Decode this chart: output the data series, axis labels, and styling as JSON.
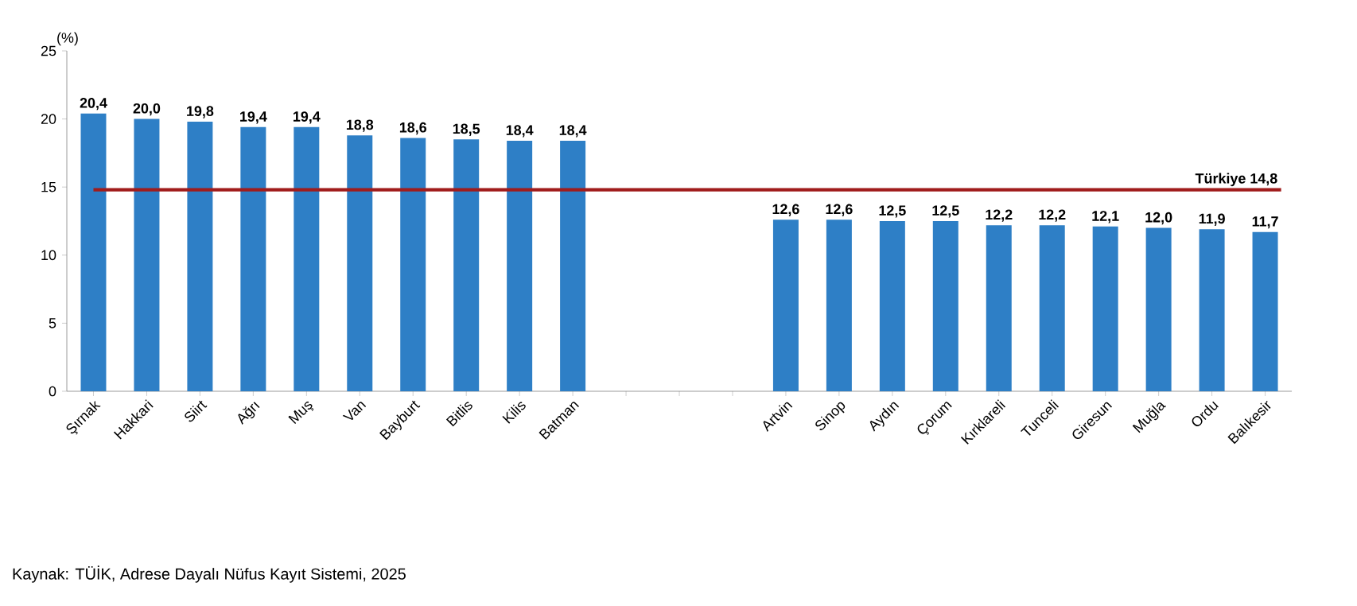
{
  "chart_data": {
    "type": "bar",
    "ylabel": "(%)",
    "categories": [
      "Şırnak",
      "Hakkari",
      "Siirt",
      "Ağrı",
      "Muş",
      "Van",
      "Bayburt",
      "Bitlis",
      "Kilis",
      "Batman",
      null,
      null,
      null,
      "Artvin",
      "Sinop",
      "Aydın",
      "Çorum",
      "Kırklareli",
      "Tunceli",
      "Giresun",
      "Muğla",
      "Ordu",
      "Balıkesir"
    ],
    "values": [
      20.4,
      20.0,
      19.8,
      19.4,
      19.4,
      18.8,
      18.6,
      18.5,
      18.4,
      18.4,
      null,
      null,
      null,
      12.6,
      12.6,
      12.5,
      12.5,
      12.2,
      12.2,
      12.1,
      12.0,
      11.9,
      11.7
    ],
    "value_labels": [
      "20,4",
      "20,0",
      "19,8",
      "19,4",
      "19,4",
      "18,8",
      "18,6",
      "18,5",
      "18,4",
      "18,4",
      null,
      null,
      null,
      "12,6",
      "12,6",
      "12,5",
      "12,5",
      "12,2",
      "12,2",
      "12,1",
      "12,0",
      "11,9",
      "11,7"
    ],
    "color": "#2e7fc6",
    "ylim": [
      0,
      25
    ],
    "yticks": [
      0,
      5,
      10,
      15,
      20,
      25
    ],
    "grid": false,
    "ref_lines": [
      {
        "axis": "y",
        "value": 14.8,
        "label": "Türkiye 14,8",
        "color": "#a01c1c"
      }
    ],
    "annotations": [
      "Kaynak: TÜİK, Adrese Dayalı Nüfus Kayıt Sistemi, 2025"
    ]
  }
}
